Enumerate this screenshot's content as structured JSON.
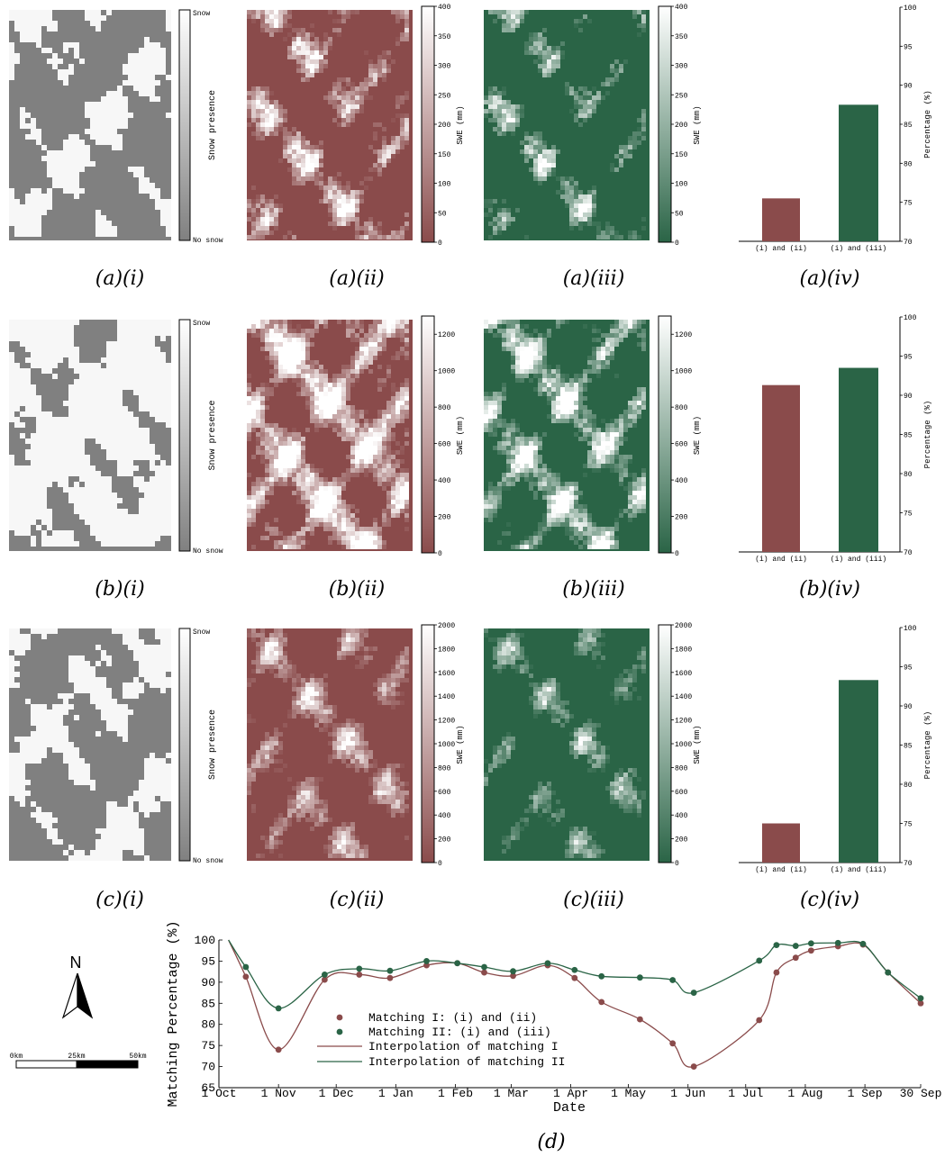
{
  "colors": {
    "red": "#8a4b4b",
    "green": "#2a6446",
    "gray": "#808080",
    "white": "#ffffff",
    "snow_white": "#f7f7f7"
  },
  "labels": {
    "snow": "Snow",
    "no_snow": "No snow",
    "snow_presence": "Snow presence",
    "swe": "SWE (mm)",
    "percentage": "Percentage (%)"
  },
  "captions": {
    "a_i": "(a)(i)",
    "a_ii": "(a)(ii)",
    "a_iii": "(a)(iii)",
    "a_iv": "(a)(iv)",
    "b_i": "(b)(i)",
    "b_ii": "(b)(ii)",
    "b_iii": "(b)(iii)",
    "b_iv": "(b)(iv)",
    "c_i": "(c)(i)",
    "c_ii": "(c)(ii)",
    "c_iii": "(c)(iii)",
    "c_iv": "(c)(iv)",
    "d": "(d)"
  },
  "north": {
    "letter": "N"
  },
  "scale_bar": {
    "ticks": [
      "0km",
      "25km",
      "50km"
    ]
  },
  "chart_data": [
    {
      "type": "bar",
      "panel": "(a)(iv)",
      "categories": [
        "(i) and (ii)",
        "(i) and (iii)"
      ],
      "values": [
        75.5,
        87.5
      ],
      "ylabel": "Percentage (%)",
      "ylim": [
        70,
        100
      ],
      "yticks": [
        70,
        75,
        80,
        85,
        90,
        95,
        100
      ],
      "colors": [
        "#8a4b4b",
        "#2a6446"
      ]
    },
    {
      "type": "bar",
      "panel": "(b)(iv)",
      "categories": [
        "(i) and (ii)",
        "(i) and (iii)"
      ],
      "values": [
        91.3,
        93.5
      ],
      "ylabel": "Percentage (%)",
      "ylim": [
        70,
        100
      ],
      "yticks": [
        70,
        75,
        80,
        85,
        90,
        95,
        100
      ],
      "colors": [
        "#8a4b4b",
        "#2a6446"
      ]
    },
    {
      "type": "bar",
      "panel": "(c)(iv)",
      "categories": [
        "(i) and (ii)",
        "(i) and (iii)"
      ],
      "values": [
        75.0,
        93.3
      ],
      "ylabel": "Percentage (%)",
      "ylim": [
        70,
        100
      ],
      "yticks": [
        70,
        75,
        80,
        85,
        90,
        95,
        100
      ],
      "colors": [
        "#8a4b4b",
        "#2a6446"
      ]
    },
    {
      "type": "line",
      "panel": "(d)",
      "xlabel": "Date",
      "ylabel": "Matching Percentage (%)",
      "xlim": [
        "1 Oct",
        "30 Sep"
      ],
      "ylim": [
        65,
        100
      ],
      "yticks": [
        65,
        70,
        75,
        80,
        85,
        90,
        95,
        100
      ],
      "xticks": [
        "1 Oct",
        "1 Nov",
        "1 Dec",
        "1 Jan",
        "1 Feb",
        "1 Mar",
        "1 Apr",
        "1 May",
        "1 Jun",
        "1 Jul",
        "1 Aug",
        "1 Sep",
        "30 Sep"
      ],
      "legend_placement": "lower-left-center",
      "series": [
        {
          "name": "Matching I: (i) and (ii)",
          "style": "points",
          "color": "#8a4b4b",
          "x": [
            "2011-10-15",
            "2011-11-01",
            "2011-11-25",
            "2011-12-13",
            "2011-12-29",
            "2012-01-17",
            "2012-02-02",
            "2012-02-16",
            "2012-03-02",
            "2012-03-20",
            "2012-04-03",
            "2012-04-17",
            "2012-05-07",
            "2012-05-24",
            "2012-06-04",
            "2012-07-08",
            "2012-07-17",
            "2012-07-27",
            "2012-08-04",
            "2012-08-18",
            "2012-08-31",
            "2012-09-13",
            "2012-09-30"
          ],
          "y": [
            91.3,
            74.0,
            90.6,
            91.8,
            91.0,
            94.0,
            94.5,
            92.3,
            91.5,
            94.0,
            91.0,
            85.3,
            81.2,
            75.5,
            70.0,
            81.0,
            92.3,
            95.8,
            97.5,
            98.5,
            98.9,
            92.3,
            85.0
          ]
        },
        {
          "name": "Matching II: (i) and (iii)",
          "style": "points",
          "color": "#2a6446",
          "x": [
            "2011-10-15",
            "2011-11-01",
            "2011-11-25",
            "2011-12-13",
            "2011-12-29",
            "2012-01-17",
            "2012-02-02",
            "2012-02-16",
            "2012-03-02",
            "2012-03-20",
            "2012-04-03",
            "2012-04-17",
            "2012-05-07",
            "2012-05-24",
            "2012-06-04",
            "2012-07-08",
            "2012-07-17",
            "2012-07-27",
            "2012-08-04",
            "2012-08-18",
            "2012-08-31",
            "2012-09-13",
            "2012-09-30"
          ],
          "y": [
            93.6,
            83.8,
            91.8,
            93.2,
            92.7,
            95.0,
            94.5,
            93.6,
            92.6,
            94.5,
            92.9,
            91.4,
            91.1,
            90.5,
            87.5,
            95.1,
            98.8,
            98.6,
            99.2,
            99.3,
            99.1,
            92.3,
            86.2
          ]
        },
        {
          "name": "Interpolation of matching I",
          "style": "line",
          "color": "#8a4b4b",
          "interpolates": "Matching I: (i) and (ii)"
        },
        {
          "name": "Interpolation of matching II",
          "style": "line",
          "color": "#2a6446",
          "interpolates": "Matching II: (i) and (iii)"
        }
      ]
    }
  ],
  "maps": {
    "a": {
      "cbar_max": 400,
      "cbar_ticks": [
        0,
        50,
        100,
        150,
        200,
        250,
        300,
        350,
        400
      ]
    },
    "b": {
      "cbar_max": 1300,
      "cbar_ticks": [
        0,
        200,
        400,
        600,
        800,
        1000,
        1200
      ]
    },
    "c": {
      "cbar_max": 2000,
      "cbar_ticks": [
        0,
        200,
        400,
        600,
        800,
        1000,
        1200,
        1400,
        1600,
        1800,
        2000
      ]
    }
  }
}
